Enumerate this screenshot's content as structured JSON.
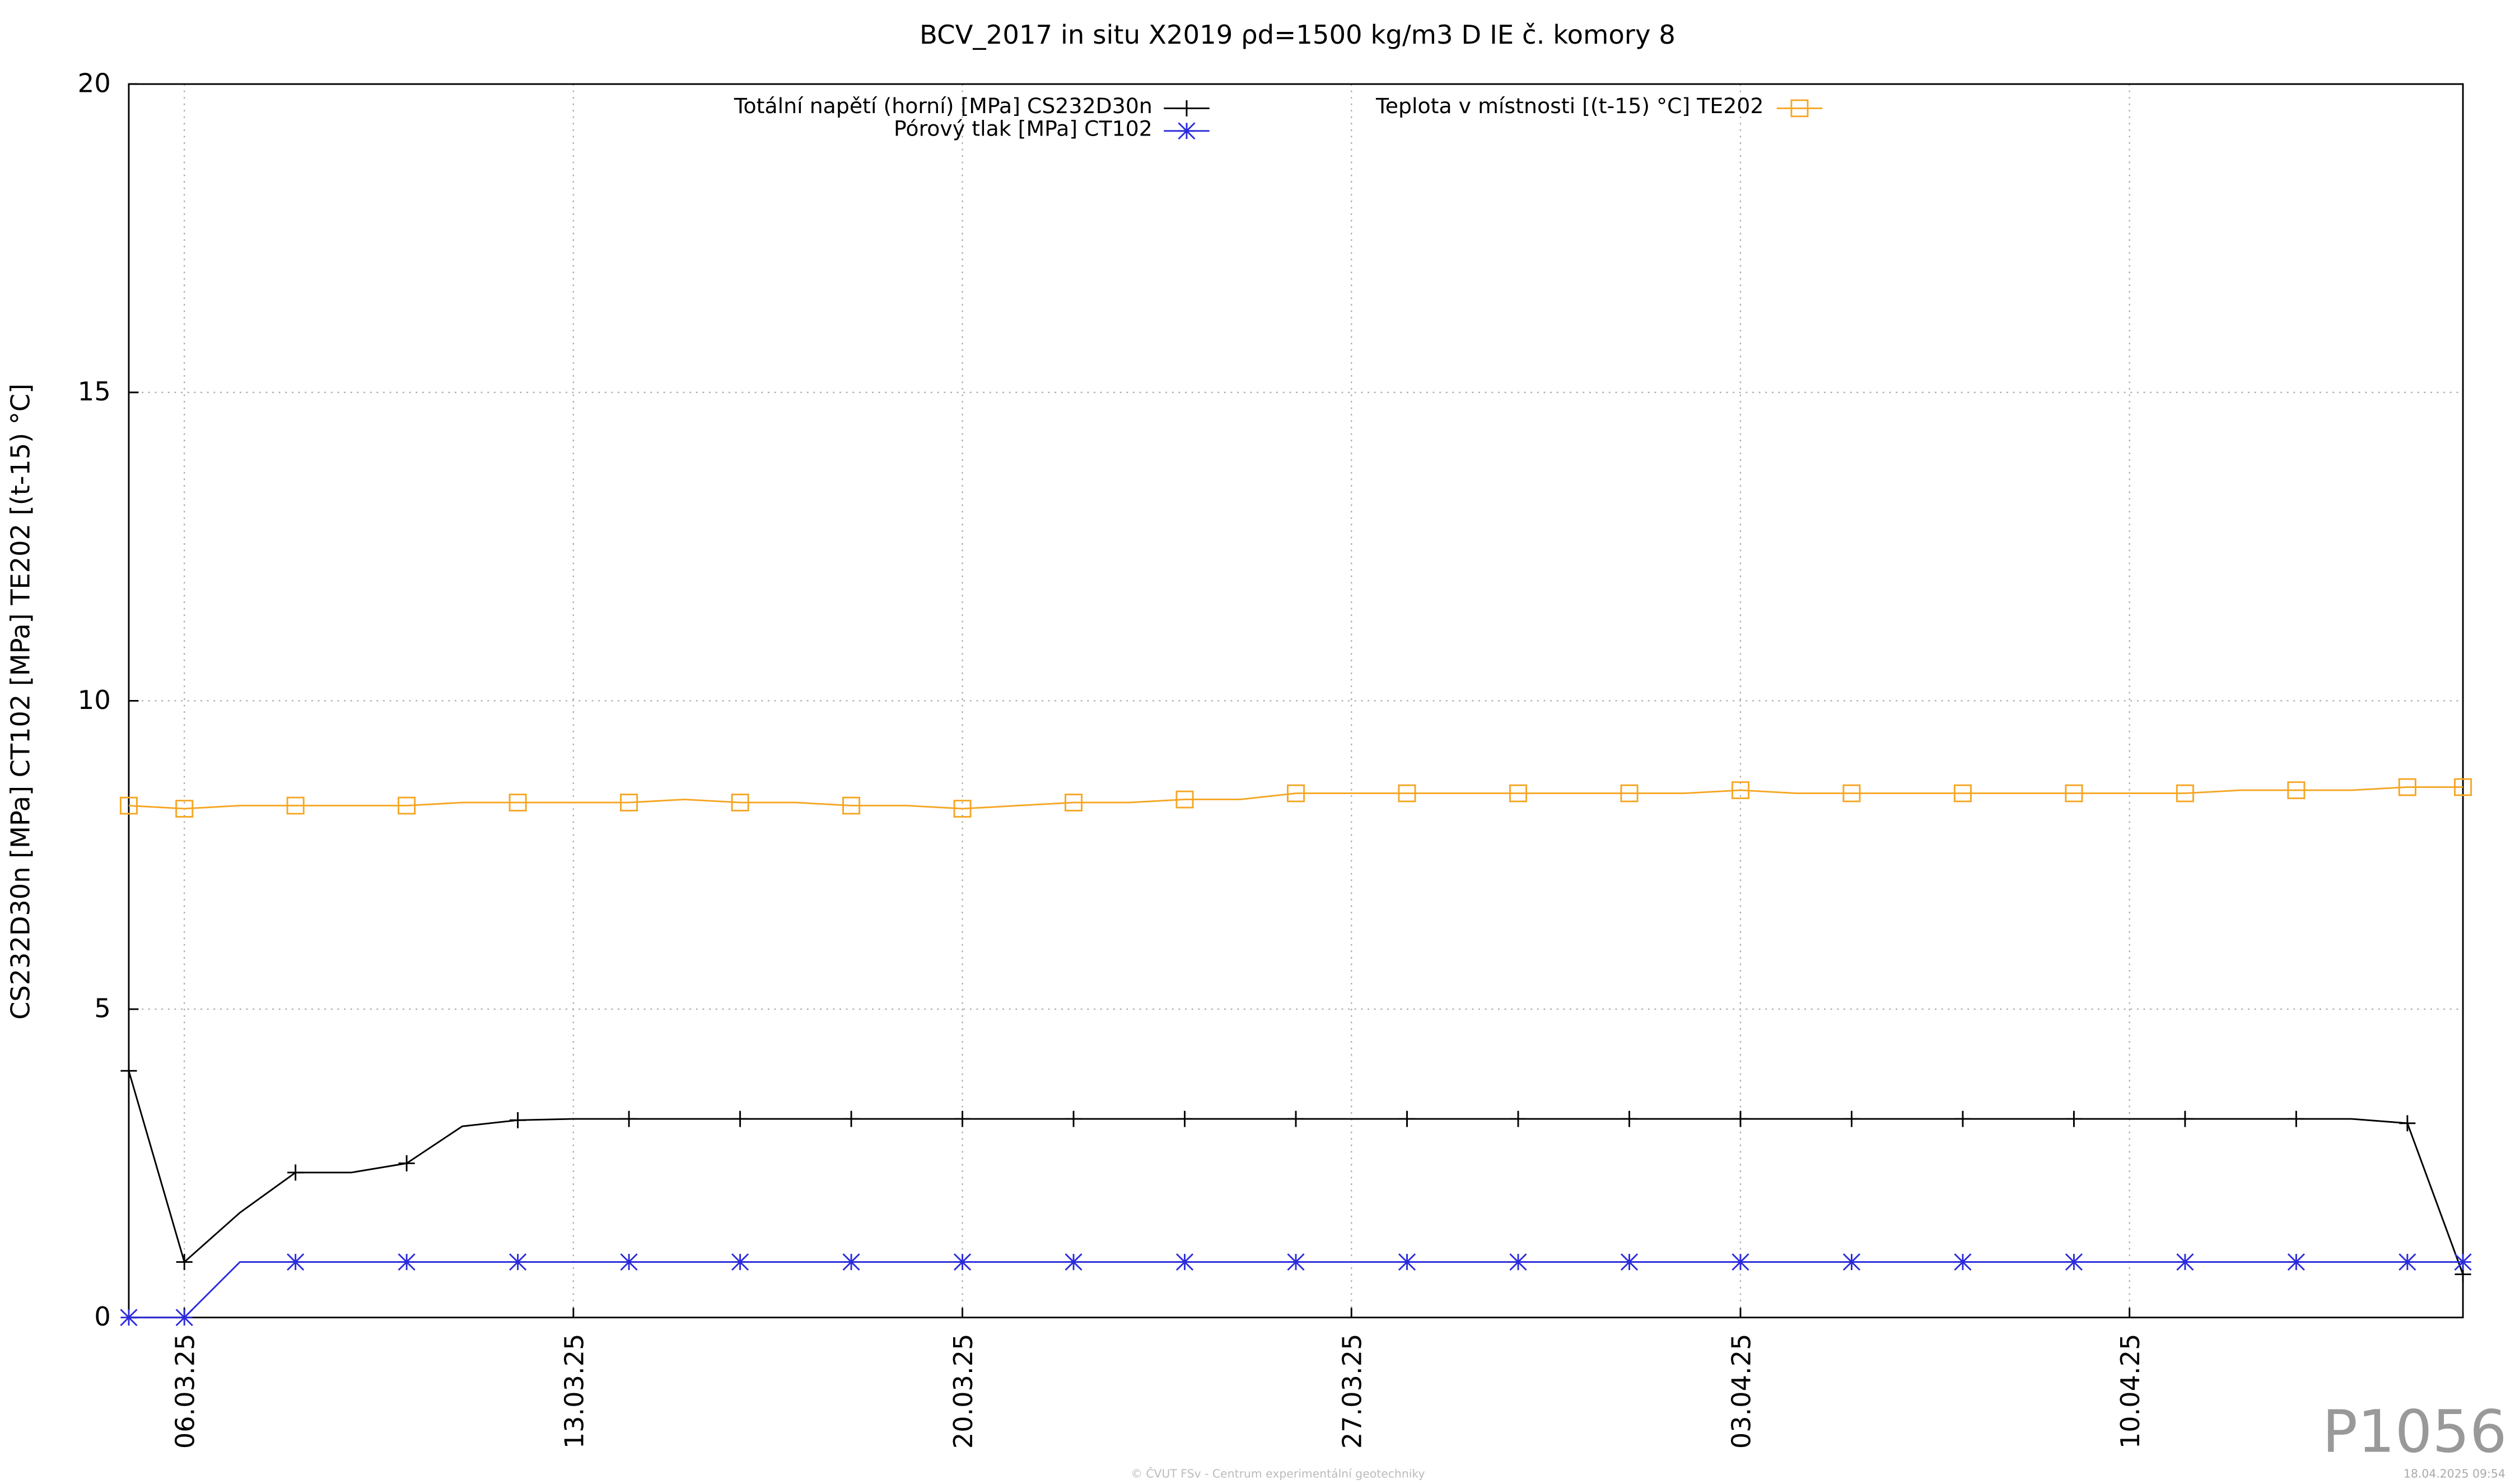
{
  "chart_data": {
    "type": "line",
    "title": "BCV_2017 in situ X2019 ρd=1500 kg/m3 D IE č. komory 8",
    "y_label": "CS232D30n [MPa] CT102 [MPa] TE202 [(t-15) °C]",
    "x": [
      "05.03.25",
      "06.03.25",
      "07.03.25",
      "08.03.25",
      "09.03.25",
      "10.03.25",
      "11.03.25",
      "12.03.25",
      "13.03.25",
      "14.03.25",
      "15.03.25",
      "16.03.25",
      "17.03.25",
      "18.03.25",
      "19.03.25",
      "20.03.25",
      "21.03.25",
      "22.03.25",
      "23.03.25",
      "24.03.25",
      "25.03.25",
      "26.03.25",
      "27.03.25",
      "28.03.25",
      "29.03.25",
      "30.03.25",
      "31.03.25",
      "01.04.25",
      "02.04.25",
      "03.04.25",
      "04.04.25",
      "05.04.25",
      "06.04.25",
      "07.04.25",
      "08.04.25",
      "09.04.25",
      "10.04.25",
      "11.04.25",
      "12.04.25",
      "13.04.25",
      "14.04.25",
      "15.04.25",
      "16.04.25"
    ],
    "series": [
      {
        "name": "Totální napětí (horní) [MPa] CS232D30n",
        "color": "#000000",
        "marker": "plus",
        "values": [
          4.0,
          0.9,
          1.7,
          2.35,
          2.35,
          2.5,
          3.1,
          3.2,
          3.22,
          3.22,
          3.22,
          3.22,
          3.22,
          3.22,
          3.22,
          3.22,
          3.22,
          3.22,
          3.22,
          3.22,
          3.22,
          3.22,
          3.22,
          3.22,
          3.22,
          3.22,
          3.22,
          3.22,
          3.22,
          3.22,
          3.22,
          3.22,
          3.22,
          3.22,
          3.22,
          3.22,
          3.22,
          3.22,
          3.22,
          3.22,
          3.22,
          3.15,
          0.7
        ]
      },
      {
        "name": "Pórový tlak [MPa] CT102",
        "color": "#2b2bdc",
        "marker": "star",
        "values": [
          0,
          0,
          0.9,
          0.9,
          0.9,
          0.9,
          0.9,
          0.9,
          0.9,
          0.9,
          0.9,
          0.9,
          0.9,
          0.9,
          0.9,
          0.9,
          0.9,
          0.9,
          0.9,
          0.9,
          0.9,
          0.9,
          0.9,
          0.9,
          0.9,
          0.9,
          0.9,
          0.9,
          0.9,
          0.9,
          0.9,
          0.9,
          0.9,
          0.9,
          0.9,
          0.9,
          0.9,
          0.9,
          0.9,
          0.9,
          0.9,
          0.9,
          0.9
        ]
      },
      {
        "name": "Teplota v místnosti [(t-15) °C] TE202",
        "color": "#f5a623",
        "marker": "square",
        "values": [
          8.3,
          8.25,
          8.3,
          8.3,
          8.3,
          8.3,
          8.35,
          8.35,
          8.35,
          8.35,
          8.4,
          8.35,
          8.35,
          8.3,
          8.3,
          8.25,
          8.3,
          8.35,
          8.35,
          8.4,
          8.4,
          8.5,
          8.5,
          8.5,
          8.5,
          8.5,
          8.5,
          8.5,
          8.5,
          8.55,
          8.5,
          8.5,
          8.5,
          8.5,
          8.5,
          8.5,
          8.5,
          8.5,
          8.55,
          8.55,
          8.55,
          8.6,
          8.6
        ]
      }
    ],
    "xlim": [
      "05.03.25",
      "16.04.25"
    ],
    "xticks": [
      "06.03.25",
      "13.03.25",
      "20.03.25",
      "27.03.25",
      "03.04.25",
      "10.04.25"
    ],
    "ylim": [
      0,
      20
    ],
    "yticks": [
      0,
      5,
      10,
      15,
      20
    ],
    "grid": true
  },
  "watermark": "P1056",
  "credit": "© ČVUT FSv - Centrum experimentální geotechniky",
  "timestamp": "18.04.2025 09:54"
}
